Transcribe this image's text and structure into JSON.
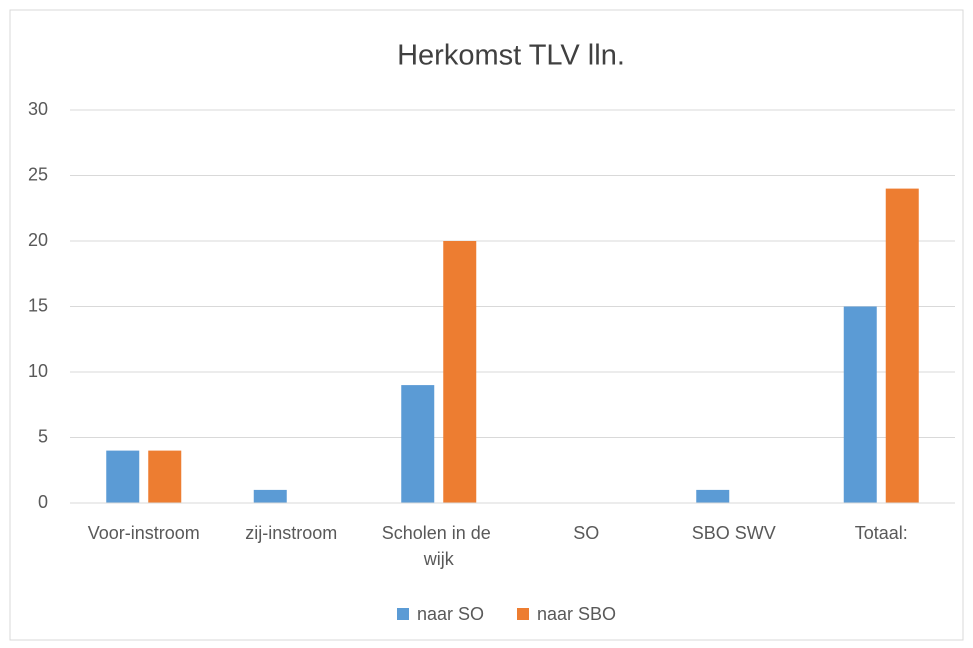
{
  "chart_data": {
    "type": "bar",
    "title": "Herkomst TLV lln.",
    "categories": [
      "Voor-instroom",
      "zij-instroom",
      "Scholen in de wijk",
      "SO",
      "SBO SWV",
      "Totaal:"
    ],
    "series": [
      {
        "name": "naar SO",
        "color": "#5b9bd5",
        "values": [
          4,
          1,
          9,
          0,
          1,
          15
        ]
      },
      {
        "name": "naar SBO",
        "color": "#ed7d31",
        "values": [
          4,
          0,
          20,
          0,
          0,
          24
        ]
      }
    ],
    "ylim": [
      0,
      30
    ],
    "yticks": [
      0,
      5,
      10,
      15,
      20,
      25,
      30
    ],
    "grid": true,
    "legend": "bottom"
  }
}
